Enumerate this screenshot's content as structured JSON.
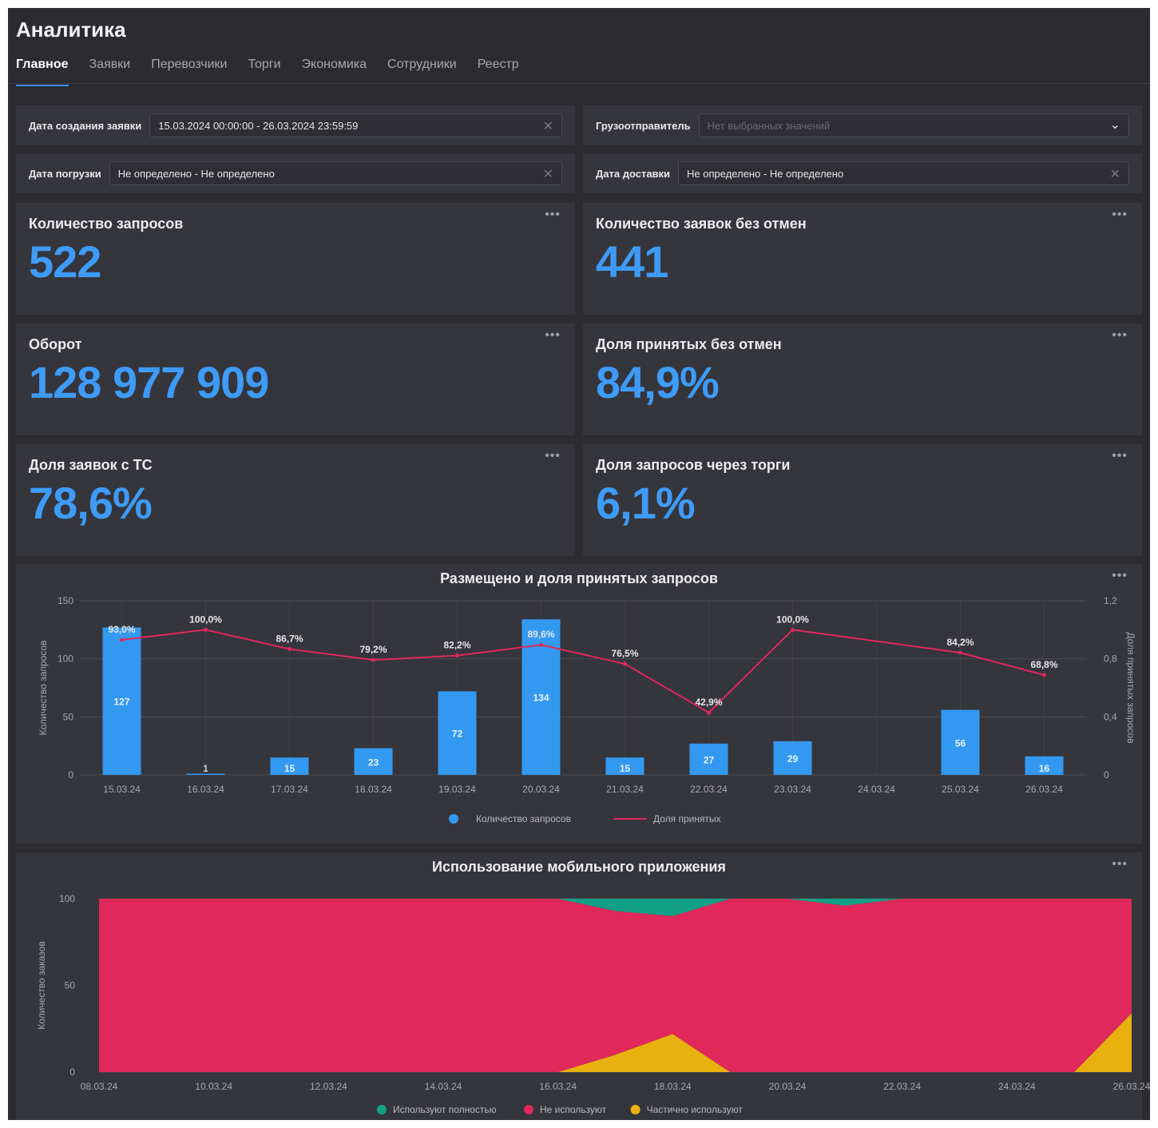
{
  "app": {
    "title": "Аналитика"
  },
  "tabs": [
    {
      "label": "Главное",
      "active": true
    },
    {
      "label": "Заявки",
      "active": false
    },
    {
      "label": "Перевозчики",
      "active": false
    },
    {
      "label": "Торги",
      "active": false
    },
    {
      "label": "Экономика",
      "active": false
    },
    {
      "label": "Сотрудники",
      "active": false
    },
    {
      "label": "Реестр",
      "active": false
    }
  ],
  "filters": {
    "created": {
      "label": "Дата создания заявки",
      "value": "15.03.2024 00:00:00 - 26.03.2024 23:59:59"
    },
    "shipper": {
      "label": "Грузоотправитель",
      "placeholder": "Нет выбранных значений"
    },
    "loading": {
      "label": "Дата погрузки",
      "value": "Не определено - Не определено"
    },
    "delivery": {
      "label": "Дата доставки",
      "value": "Не определено - Не определено"
    }
  },
  "kpis": {
    "requests": {
      "label": "Количество запросов",
      "value": "522"
    },
    "orders_no_cancel": {
      "label": "Количество заявок без отмен",
      "value": "441"
    },
    "turnover": {
      "label": "Оборот",
      "value": "128 977 909"
    },
    "accepted_share": {
      "label": "Доля принятых без отмен",
      "value": "84,9%"
    },
    "ts_share": {
      "label": "Доля заявок с ТС",
      "value": "78,6%"
    },
    "tender_share": {
      "label": "Доля запросов через торги",
      "value": "6,1%"
    }
  },
  "menu_icon": "•••",
  "colors": {
    "accent": "#3e9bf6",
    "bar": "#3399f0",
    "line": "#e0285a",
    "full": "#11a086",
    "none": "#e0285a",
    "partial": "#e8b10f"
  },
  "chart_data": [
    {
      "type": "bar",
      "title": "Размещено и доля принятых запросов",
      "categories": [
        "15.03.24",
        "16.03.24",
        "17.03.24",
        "18.03.24",
        "19.03.24",
        "20.03.24",
        "21.03.24",
        "22.03.24",
        "23.03.24",
        "24.03.24",
        "25.03.24",
        "26.03.24"
      ],
      "series": [
        {
          "name": "Количество запросов",
          "type": "bar",
          "axis": "left",
          "values": [
            127,
            1,
            15,
            23,
            72,
            134,
            15,
            27,
            29,
            null,
            56,
            16
          ],
          "labels": [
            "127",
            "1",
            "15",
            "23",
            "72",
            "134",
            "15",
            "27",
            "29",
            "",
            "56",
            "16"
          ]
        },
        {
          "name": "Доля принятых",
          "type": "line",
          "axis": "right",
          "values": [
            0.93,
            1.0,
            0.867,
            0.792,
            0.822,
            0.896,
            0.765,
            0.429,
            1.0,
            null,
            0.842,
            0.688
          ],
          "labels": [
            "93,0%",
            "100,0%",
            "86,7%",
            "79,2%",
            "82,2%",
            "89,6%",
            "76,5%",
            "42,9%",
            "100,0%",
            "",
            "84,2%",
            "68,8%"
          ]
        }
      ],
      "ylabel": "Количество запросов",
      "y2label": "Доля принятых запросов",
      "ylim": [
        0,
        150
      ],
      "y2lim": [
        0,
        1.2
      ],
      "yticks": [
        "0",
        "50",
        "100",
        "150"
      ],
      "y2ticks": [
        "0",
        "0,4",
        "0,8",
        "1,2"
      ],
      "legend": "bottom",
      "grid": true
    },
    {
      "type": "area",
      "title": "Использование мобильного приложения",
      "x": [
        "08.03.24",
        "09.03.24",
        "10.03.24",
        "11.03.24",
        "12.03.24",
        "13.03.24",
        "14.03.24",
        "15.03.24",
        "16.03.24",
        "17.03.24",
        "18.03.24",
        "19.03.24",
        "20.03.24",
        "21.03.24",
        "22.03.24",
        "23.03.24",
        "24.03.24",
        "25.03.24",
        "26.03.24"
      ],
      "xticks": [
        "08.03.24",
        "10.03.24",
        "12.03.24",
        "14.03.24",
        "16.03.24",
        "18.03.24",
        "20.03.24",
        "22.03.24",
        "24.03.24",
        "26.03.24"
      ],
      "series": [
        {
          "name": "Частично используют",
          "key": "partial",
          "values": [
            0,
            0,
            0,
            0,
            0,
            0,
            0,
            0,
            0,
            10,
            22,
            0,
            0,
            0,
            0,
            0,
            0,
            0,
            34
          ]
        },
        {
          "name": "Не используют",
          "key": "none",
          "values": [
            100,
            100,
            100,
            100,
            100,
            100,
            100,
            100,
            100,
            83,
            68,
            100,
            100,
            96,
            100,
            100,
            100,
            100,
            66
          ]
        },
        {
          "name": "Используют полностью",
          "key": "full",
          "values": [
            0,
            0,
            0,
            0,
            0,
            0,
            0,
            0,
            0,
            7,
            10,
            0,
            0,
            4,
            0,
            0,
            0,
            0,
            0
          ]
        }
      ],
      "legend_order": [
        "Используют полностью",
        "Не используют",
        "Частично используют"
      ],
      "ylabel": "Количество заказов",
      "ylim": [
        0,
        100
      ],
      "yticks": [
        "0",
        "50",
        "100"
      ],
      "stacked": true,
      "legend": "bottom",
      "grid": true
    }
  ]
}
